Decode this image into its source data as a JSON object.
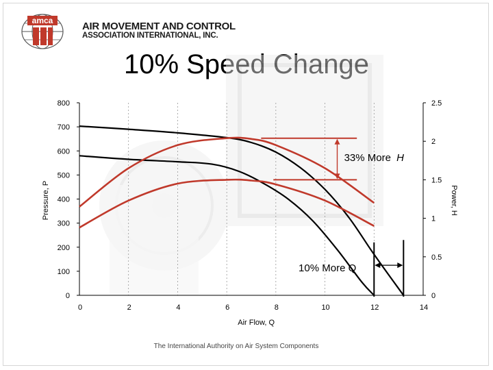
{
  "header": {
    "org_line1": "AIR MOVEMENT AND CONTROL",
    "org_line2": "ASSOCIATION INTERNATIONAL, INC.",
    "logo_text": "amca"
  },
  "slide": {
    "title": "10% Speed Change",
    "footer": "The International Authority on Air System Components"
  },
  "colors": {
    "pressure_curve": "#000000",
    "power_curve": "#c0392b",
    "annotation": "#c0392b",
    "background_image_tint": "#e6e6e6"
  },
  "chart_data": {
    "type": "line",
    "xlabel": "Air Flow, Q",
    "ylabel_left": "Pressure, P",
    "ylabel_right": "Power, H",
    "xlim": [
      0,
      14
    ],
    "ylim_left": [
      0,
      800
    ],
    "ylim_right": [
      0,
      2.5
    ],
    "x_ticks": [
      "0",
      "2",
      "4",
      "6",
      "8",
      "10",
      "12",
      "14"
    ],
    "y_ticks_left": [
      "0",
      "100",
      "200",
      "300",
      "400",
      "500",
      "600",
      "700",
      "800"
    ],
    "y_ticks_right": [
      "0",
      "0.5",
      "1",
      "1.5",
      "2",
      "2.5"
    ],
    "grid": "vertical",
    "series": [
      {
        "axis": "left",
        "style": "pressure",
        "x": [
          0,
          2,
          4,
          6,
          7,
          8,
          9,
          10,
          11,
          12,
          13.2
        ],
        "y": [
          703,
          690,
          675,
          655,
          635,
          595,
          530,
          440,
          320,
          170,
          0
        ]
      },
      {
        "axis": "left",
        "style": "pressure",
        "x": [
          0,
          2,
          4,
          5.4,
          6.5,
          7.5,
          8.5,
          9.5,
          10.5,
          11.5,
          12.0
        ],
        "y": [
          580,
          565,
          555,
          545,
          515,
          465,
          400,
          310,
          190,
          55,
          0
        ]
      },
      {
        "axis": "right",
        "style": "power",
        "x": [
          0,
          2,
          4,
          6,
          7,
          8,
          10,
          12
        ],
        "y": [
          1.15,
          1.65,
          1.95,
          2.04,
          2.03,
          1.95,
          1.65,
          1.2
        ]
      },
      {
        "axis": "right",
        "style": "power",
        "x": [
          0,
          2,
          4,
          6,
          7,
          8,
          10,
          12
        ],
        "y": [
          0.88,
          1.23,
          1.45,
          1.5,
          1.49,
          1.44,
          1.23,
          0.9
        ]
      }
    ],
    "annotations": [
      {
        "label": "33% More",
        "symbol": "H"
      },
      {
        "label": "10% More Q"
      }
    ]
  }
}
